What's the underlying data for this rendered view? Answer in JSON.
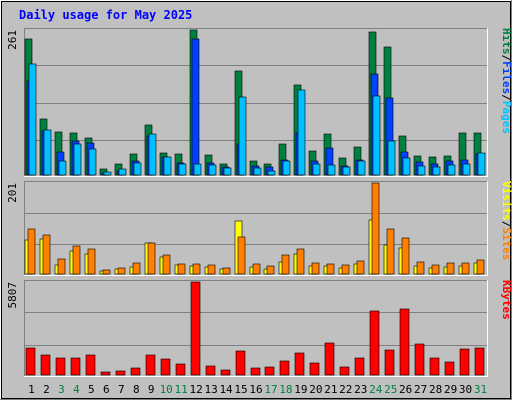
{
  "chart_data": {
    "type": "bar",
    "title": "Daily usage for May 2025",
    "days": [
      "1",
      "2",
      "3",
      "4",
      "5",
      "6",
      "7",
      "8",
      "9",
      "10",
      "11",
      "12",
      "13",
      "14",
      "15",
      "16",
      "17",
      "18",
      "19",
      "20",
      "21",
      "22",
      "23",
      "24",
      "25",
      "26",
      "27",
      "28",
      "29",
      "30",
      "31"
    ],
    "weekend_days": [
      "3",
      "4",
      "10",
      "11",
      "17",
      "18",
      "24",
      "25",
      "31"
    ],
    "panels": [
      {
        "max_label": "261",
        "ylim": [
          0,
          261
        ],
        "legend": [
          "Pages",
          "Files",
          "Hits"
        ],
        "series": [
          {
            "name": "Hits",
            "color": "#008040",
            "values": [
              245,
              101,
              78,
              75,
              66,
              11,
              20,
              38,
              90,
              39,
              38,
              261,
              36,
              20,
              187,
              26,
              20,
              55,
              162,
              44,
              74,
              30,
              51,
              258,
              231,
              70,
              35,
              32,
              35,
              75,
              75
            ]
          },
          {
            "name": "Files",
            "color": "#0040ff",
            "values": [
              170,
              80,
              42,
              62,
              57,
              3,
              7,
              26,
              70,
              32,
              21,
              245,
              22,
              14,
              55,
              16,
              14,
              27,
              75,
              25,
              49,
              16,
              27,
              182,
              138,
              42,
              23,
              20,
              26,
              27,
              38
            ]
          },
          {
            "name": "Pages",
            "color": "#00c0ff",
            "values": [
              200,
              81,
              25,
              55,
              47,
              6,
              10,
              21,
              74,
              32,
              19,
              20,
              18,
              13,
              141,
              13,
              8,
              26,
              153,
              20,
              18,
              15,
              25,
              143,
              62,
              31,
              17,
              15,
              18,
              20,
              40
            ]
          }
        ]
      },
      {
        "max_label": "201",
        "ylim": [
          0,
          201
        ],
        "legend": [
          "Sites",
          "Visits"
        ],
        "series": [
          {
            "name": "Visits",
            "color": "#ffff00",
            "values": [
              74,
              77,
              19,
              51,
              44,
              6,
              10,
              16,
              69,
              37,
              19,
              18,
              16,
              12,
              116,
              15,
              11,
              26,
              44,
              18,
              17,
              14,
              21,
              120,
              65,
              58,
              17,
              14,
              16,
              18,
              24
            ]
          },
          {
            "name": "Sites",
            "color": "#ff8000",
            "values": [
              99,
              86,
              34,
              62,
              55,
              9,
              14,
              24,
              69,
              41,
              23,
              22,
              20,
              14,
              81,
              21,
              17,
              41,
              56,
              24,
              21,
              20,
              29,
              201,
              99,
              80,
              27,
              20,
              24,
              25,
              32
            ]
          }
        ]
      },
      {
        "max_label": "5807",
        "ylim": [
          0,
          5807
        ],
        "legend": [
          "KBytes"
        ],
        "series": [
          {
            "name": "KBytes",
            "color": "#ff0000",
            "values": [
              1660,
              1220,
              1080,
              1080,
              1280,
              210,
              240,
              450,
              1250,
              1000,
              690,
              5807,
              570,
              290,
              1510,
              460,
              470,
              890,
              1360,
              720,
              1990,
              510,
              1040,
              3990,
              1560,
              4100,
              1930,
              1060,
              830,
              1620,
              1660
            ]
          }
        ]
      }
    ],
    "colors": {
      "background": "#c0c0c0",
      "title_text": "#0000ff",
      "weekday_label": "#000000",
      "weekend_label": "#008040"
    }
  }
}
